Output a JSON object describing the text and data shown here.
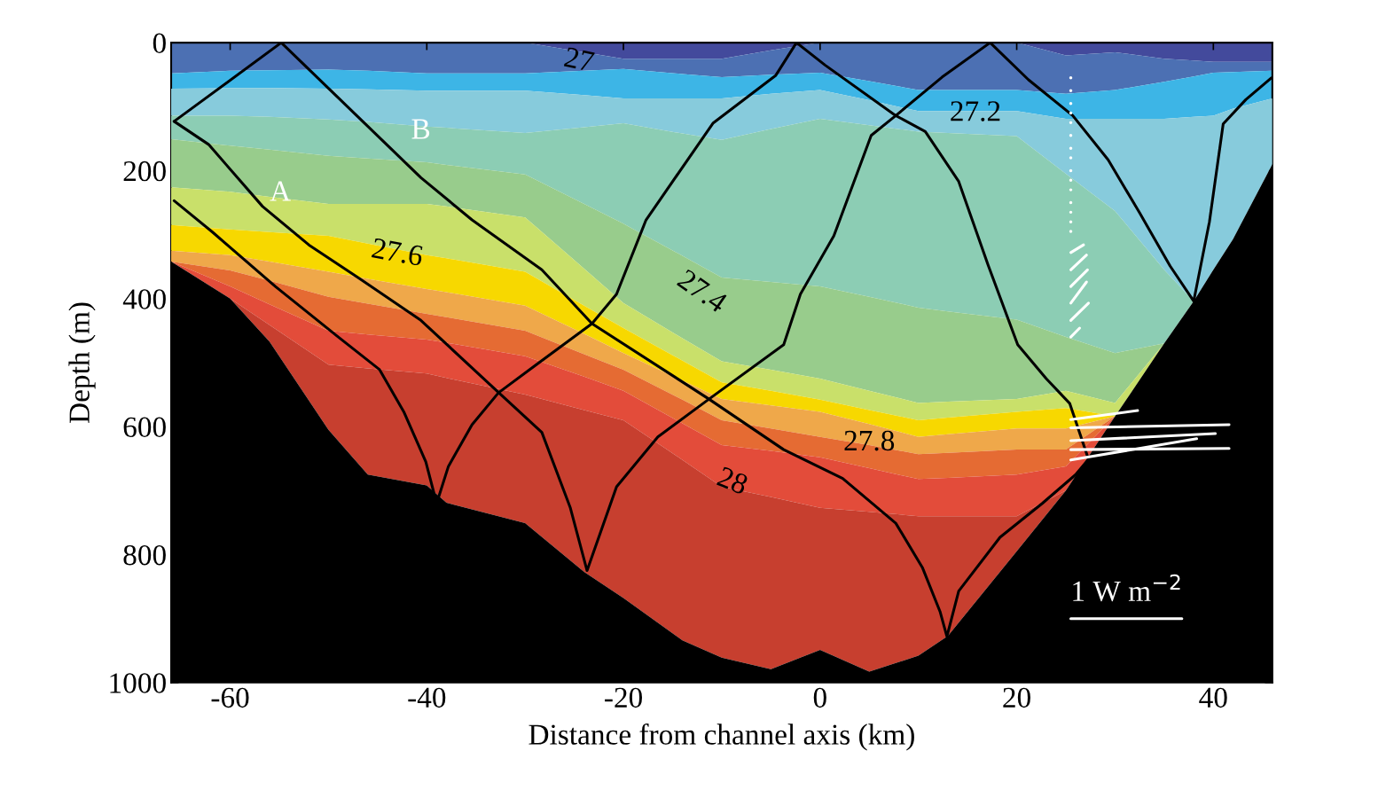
{
  "chart_data": {
    "type": "area",
    "stacked": true,
    "xlabel": "Distance from channel axis (km)",
    "ylabel": "Depth (m)",
    "x": [
      -66,
      -60,
      -56,
      -50,
      -46,
      -40,
      -38,
      -30,
      -24,
      -20,
      -14,
      -10,
      -5,
      0,
      5,
      10,
      13,
      20,
      25,
      30,
      35,
      38,
      40,
      42,
      46
    ],
    "xlim": [
      -66,
      46
    ],
    "ylim": [
      1000,
      0
    ],
    "xticks": [
      -60,
      -40,
      -20,
      0,
      20,
      40
    ],
    "yticks": [
      0,
      200,
      400,
      600,
      800,
      1000
    ],
    "grid": false,
    "series": [
      {
        "color": "#434a9c",
        "values": [
          0,
          0,
          0,
          0,
          0,
          0,
          0,
          0,
          15,
          25,
          25,
          25,
          12,
          0,
          0,
          0,
          0,
          0,
          20,
          15,
          25,
          28,
          30,
          30,
          30
        ]
      },
      {
        "color": "#4c70b3",
        "values": [
          48,
          44,
          43,
          42,
          44,
          48,
          48,
          48,
          29,
          16,
          24,
          29,
          38,
          47,
          60,
          74,
          74,
          74,
          60,
          59,
          36,
          25,
          17,
          16,
          14
        ]
      },
      {
        "color": "#3db5e6",
        "values": [
          24,
          27,
          28,
          30,
          29,
          27,
          27,
          27,
          38,
          46,
          38,
          33,
          30,
          27,
          30,
          33,
          33,
          33,
          39,
          45,
          58,
          63,
          67,
          57,
          43
        ]
      },
      {
        "color": "#87cbdc",
        "values": [
          42,
          43,
          45,
          48,
          51,
          56,
          58,
          66,
          50,
          39,
          55,
          65,
          55,
          45,
          39,
          32,
          34,
          39,
          86,
          144,
          236,
          288,
          241,
          204,
          103
        ]
      },
      {
        "color": "#8ccdb4",
        "values": [
          37,
          47,
          51,
          57,
          57,
          56,
          58,
          65,
          120,
          157,
          191,
          215,
          239,
          262,
          268,
          275,
          279,
          287,
          255,
          222,
          115,
          0,
          null,
          null,
          null
        ]
      },
      {
        "color": "#98cc8c",
        "values": [
          75,
          72,
          74,
          75,
          71,
          65,
          65,
          67,
          101,
          124,
          129,
          131,
          137,
          144,
          147,
          149,
          141,
          124,
          84,
          78,
          0,
          null,
          null,
          null,
          null
        ]
      },
      {
        "color": "#c9e06a",
        "values": [
          59,
          59,
          55,
          50,
          62,
          80,
          81,
          85,
          58,
          39,
          35,
          33,
          33,
          33,
          30,
          27,
          25,
          20,
          27,
          21,
          0,
          null,
          null,
          null,
          null
        ]
      },
      {
        "color": "#f7d800",
        "values": [
          40,
          40,
          46,
          56,
          55,
          53,
          53,
          53,
          44,
          39,
          31,
          26,
          23,
          19,
          22,
          26,
          26,
          26,
          32,
          0,
          null,
          null,
          null,
          null,
          null
        ]
      },
      {
        "color": "#efa84a",
        "values": [
          17,
          24,
          30,
          39,
          39,
          39,
          39,
          39,
          32,
          26,
          30,
          33,
          36,
          39,
          33,
          27,
          29,
          33,
          33,
          0,
          null,
          null,
          null,
          null,
          null
        ]
      },
      {
        "color": "#e56b33",
        "values": [
          0,
          25,
          37,
          53,
          48,
          40,
          40,
          40,
          35,
          33,
          37,
          39,
          35,
          32,
          36,
          39,
          39,
          39,
          26,
          0,
          null,
          null,
          null,
          null,
          null
        ]
      },
      {
        "color": "#e34c3a",
        "values": [
          0,
          19,
          32,
          53,
          53,
          53,
          55,
          60,
          52,
          46,
          57,
          65,
          72,
          79,
          68,
          58,
          60,
          65,
          38,
          0,
          null,
          null,
          null,
          null,
          null
        ]
      },
      {
        "color": "#c73f2f",
        "values": [
          null,
          0,
          26,
          102,
          166,
          175,
          195,
          201,
          253,
          278,
          282,
          267,
          269,
          222,
          250,
          218,
          187,
          55,
          0,
          null,
          null,
          null,
          null,
          null,
          null
        ]
      },
      {
        "color": "#000000",
        "values": [
          658,
          600,
          533,
          395,
          325,
          308,
          281,
          249,
          173,
          132,
          66,
          39,
          21,
          51,
          17,
          42,
          73,
          205,
          300,
          416,
          530,
          596,
          645,
          693,
          810
        ]
      },
      {
        "type": "line",
        "color": "#000000",
        "x": [
          -65.7,
          -54.8,
          -40.6,
          -35.4,
          -28.3,
          -23.2,
          -11.3,
          -3.7,
          2.3,
          7.7,
          10.4,
          12.2,
          12.9,
          14.1,
          18.3,
          22.6,
          26.0,
          27.3
        ],
        "values": [
          123,
          0,
          211,
          277,
          355,
          439,
          557,
          636,
          681,
          751,
          820,
          889,
          928,
          857,
          773,
          720,
          675,
          651
        ]
      },
      {
        "type": "line",
        "color": "#000000",
        "x": [
          -65.7,
          -62.2,
          -56.7,
          -52.0,
          -46.9,
          -40.6,
          -32.9,
          -28.3,
          -25.4,
          -23.7,
          -20.7,
          -16.5,
          -11.3,
          -3.7,
          -2.0,
          1.4,
          5.2,
          7.7,
          12.4,
          17.3,
          21.2,
          25.7,
          29.3,
          32.5,
          35.6,
          38.0,
          39.6,
          41.0,
          43.3,
          45.9
        ],
        "values": [
          123,
          159,
          256,
          316,
          368,
          434,
          544,
          609,
          727,
          825,
          694,
          616,
          557,
          472,
          393,
          302,
          145,
          114,
          54,
          0,
          58,
          114,
          183,
          266,
          349,
          404,
          280,
          127,
          89,
          55
        ]
      },
      {
        "type": "line",
        "color": "#000000",
        "x": [
          -65.7,
          -61.8,
          -55.4,
          -49.0,
          -44.8,
          -42.3,
          -40.1,
          -39.0,
          -37.8,
          -35.4,
          -32.7,
          -29.1,
          -23.2,
          -20.7,
          -17.7,
          -10.9,
          -4.5,
          -2.4,
          0.5,
          7.7,
          10.7,
          14.1,
          17.1,
          20.1,
          23.0,
          25.4,
          27.3
        ],
        "values": [
          247,
          296,
          381,
          460,
          511,
          578,
          655,
          720,
          662,
          597,
          547,
          506,
          439,
          393,
          277,
          126,
          51,
          0,
          35,
          114,
          139,
          217,
          348,
          472,
          525,
          564,
          651
        ]
      },
      {
        "type": "line",
        "color": "#ffffff",
        "x": [
          25.5,
          32.3
        ],
        "values": [
          589,
          575
        ]
      },
      {
        "type": "line",
        "color": "#ffffff",
        "x": [
          25.5,
          41.6
        ],
        "values": [
          602,
          597
        ]
      },
      {
        "type": "line",
        "color": "#ffffff",
        "x": [
          25.5,
          40.2
        ],
        "values": [
          622,
          611
        ]
      },
      {
        "type": "line",
        "color": "#ffffff",
        "x": [
          25.5,
          41.6
        ],
        "values": [
          636,
          634
        ]
      },
      {
        "type": "line",
        "color": "#ffffff",
        "x": [
          25.5,
          38.3
        ],
        "values": [
          652,
          619
        ]
      },
      {
        "type": "line",
        "color": "#ffffff",
        "x": [
          25.5,
          26.8
        ],
        "values": [
          328,
          316
        ]
      },
      {
        "type": "line",
        "color": "#ffffff",
        "x": [
          25.5,
          27.1
        ],
        "values": [
          355,
          332
        ]
      },
      {
        "type": "line",
        "color": "#ffffff",
        "x": [
          25.5,
          27.2
        ],
        "values": [
          381,
          355
        ]
      },
      {
        "type": "line",
        "color": "#ffffff",
        "x": [
          25.5,
          27.1
        ],
        "values": [
          407,
          374
        ]
      },
      {
        "type": "line",
        "color": "#ffffff",
        "x": [
          25.5,
          27.3
        ],
        "values": [
          434,
          407
        ]
      },
      {
        "type": "line",
        "color": "#ffffff",
        "x": [
          25.5,
          26.4
        ],
        "values": [
          460,
          446
        ]
      },
      {
        "type": "scatter",
        "marker": "circle",
        "color": "#ffffff",
        "x": [
          25.5,
          25.5,
          25.5,
          25.5,
          25.5,
          25.5,
          25.5,
          25.5,
          25.5,
          25.5,
          25.5,
          25.5,
          25.5,
          25.5,
          25.5
        ],
        "values": [
          55,
          75,
          95,
          110,
          125,
          145,
          165,
          180,
          200,
          215,
          230,
          250,
          265,
          280,
          295
        ]
      },
      {
        "type": "line",
        "color": "#ffffff",
        "x": [
          25.5,
          36.8
        ],
        "values": [
          900,
          900
        ]
      }
    ],
    "annotations": [
      "27",
      {
        "text": "27.2",
        "x": 15.8,
        "y": 111
      },
      "27.4",
      "27.6",
      {
        "text": "27.8",
        "x": 5.0,
        "y": 626
      },
      "28",
      {
        "text": "A",
        "x": -54.9,
        "y": 279
      },
      {
        "text": "B",
        "x": -40.6,
        "y": 211
      },
      {
        "text": "1 W m$^{−2}$",
        "x": 31.2,
        "y": 900
      }
    ]
  }
}
